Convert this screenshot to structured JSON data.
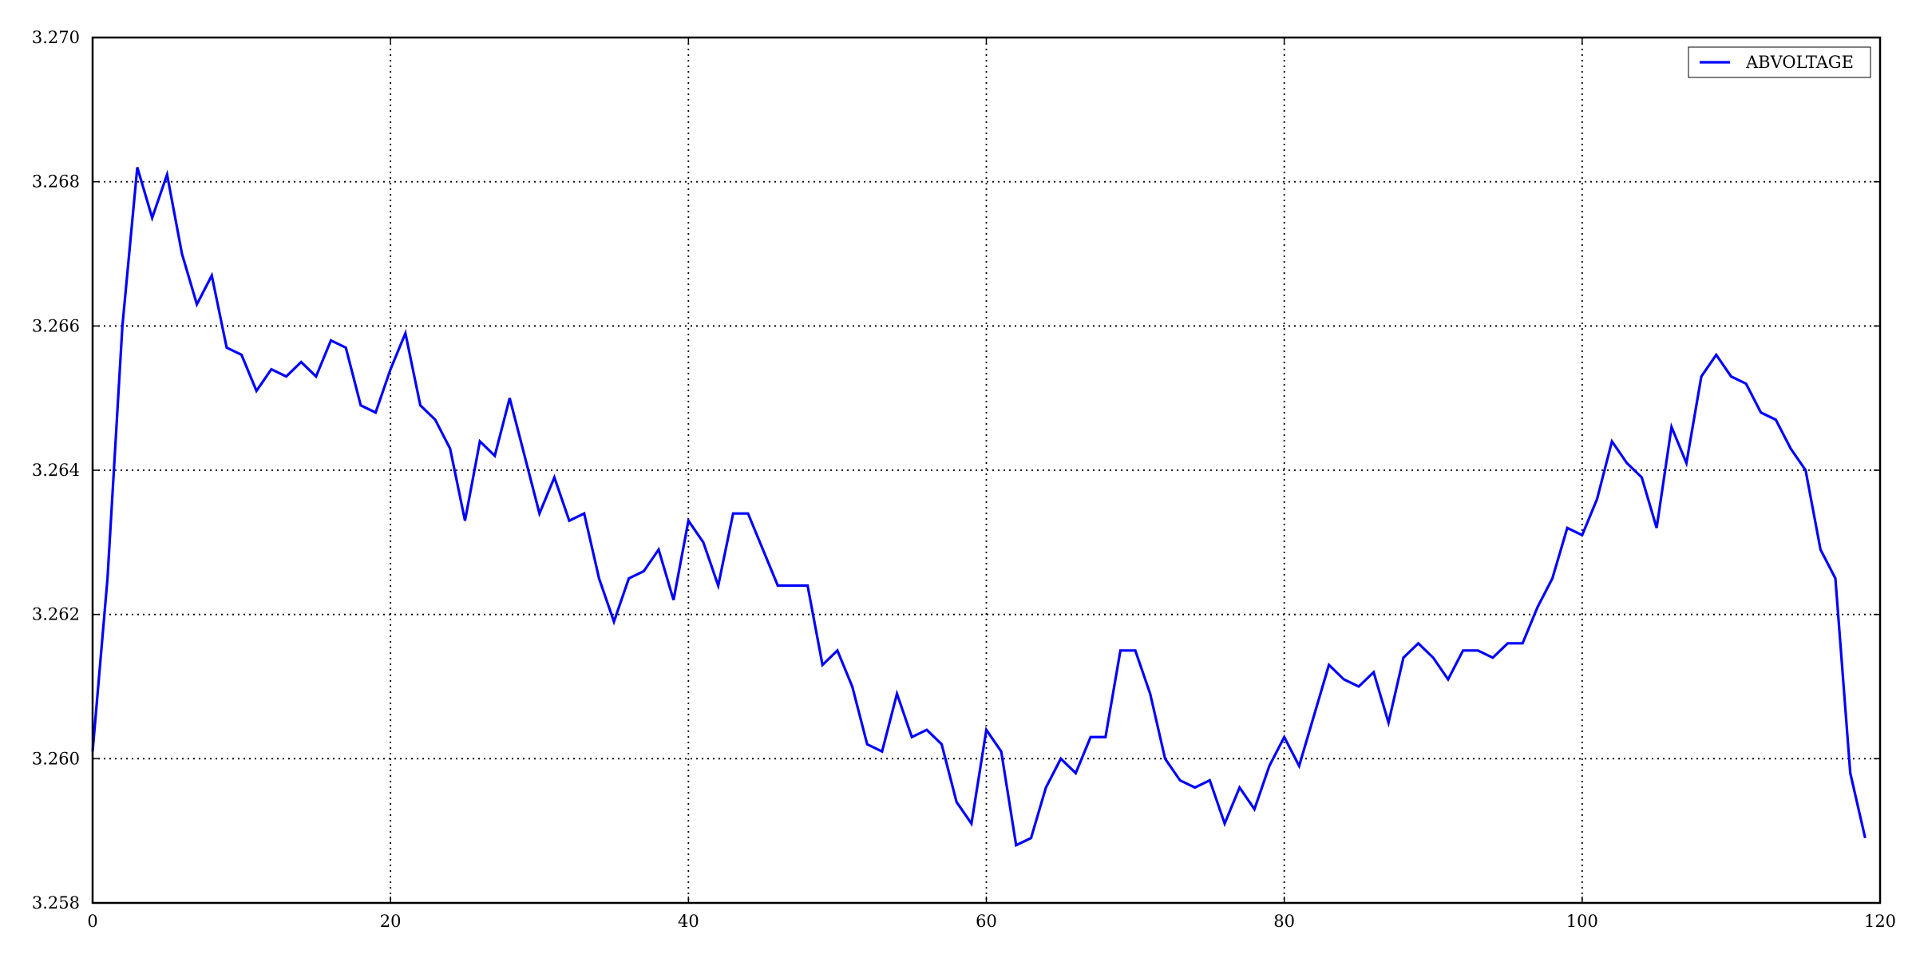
{
  "chart_data": {
    "type": "line",
    "title": "",
    "xlabel": "",
    "ylabel": "",
    "xlim": [
      0,
      120
    ],
    "ylim": [
      3.258,
      3.27
    ],
    "grid": true,
    "grid_style": "dotted",
    "legend_position": "top-right",
    "x_ticks": [
      0,
      20,
      40,
      60,
      80,
      100,
      120
    ],
    "x_tick_labels": [
      "0",
      "20",
      "40",
      "60",
      "80",
      "100",
      "120"
    ],
    "y_ticks": [
      3.258,
      3.26,
      3.262,
      3.264,
      3.266,
      3.268,
      3.27
    ],
    "y_tick_labels": [
      "3.258",
      "3.260",
      "3.262",
      "3.264",
      "3.266",
      "3.268",
      "3.270"
    ],
    "series": [
      {
        "name": "ABVOLTAGE",
        "color": "#0000ff",
        "x": [
          0,
          1,
          2,
          3,
          4,
          5,
          6,
          7,
          8,
          9,
          10,
          11,
          12,
          13,
          14,
          15,
          16,
          17,
          18,
          19,
          20,
          21,
          22,
          23,
          24,
          25,
          26,
          27,
          28,
          29,
          30,
          31,
          32,
          33,
          34,
          35,
          36,
          37,
          38,
          39,
          40,
          41,
          42,
          43,
          44,
          45,
          46,
          47,
          48,
          49,
          50,
          51,
          52,
          53,
          54,
          55,
          56,
          57,
          58,
          59,
          60,
          61,
          62,
          63,
          64,
          65,
          66,
          67,
          68,
          69,
          70,
          71,
          72,
          73,
          74,
          75,
          76,
          77,
          78,
          79,
          80,
          81,
          82,
          83,
          84,
          85,
          86,
          87,
          88,
          89,
          90,
          91,
          92,
          93,
          94,
          95,
          96,
          97,
          98,
          99,
          100,
          101,
          102,
          103,
          104,
          105,
          106,
          107,
          108,
          109,
          110,
          111,
          112,
          113,
          114,
          115,
          116,
          117,
          118,
          119
        ],
        "values": [
          3.2601,
          3.2625,
          3.266,
          3.2682,
          3.2675,
          3.2681,
          3.267,
          3.2663,
          3.2667,
          3.2657,
          3.2656,
          3.2651,
          3.2654,
          3.2653,
          3.2655,
          3.2653,
          3.2658,
          3.2657,
          3.2649,
          3.2648,
          3.2654,
          3.2659,
          3.2649,
          3.2647,
          3.2643,
          3.2633,
          3.2644,
          3.2642,
          3.265,
          3.2642,
          3.2634,
          3.2639,
          3.2633,
          3.2634,
          3.2625,
          3.2619,
          3.2625,
          3.2626,
          3.2629,
          3.2622,
          3.2633,
          3.263,
          3.2624,
          3.2634,
          3.2634,
          3.2629,
          3.2624,
          3.2624,
          3.2624,
          3.2613,
          3.2615,
          3.261,
          3.2602,
          3.2601,
          3.2609,
          3.2603,
          3.2604,
          3.2602,
          3.2594,
          3.2591,
          3.2604,
          3.2601,
          3.2588,
          3.2589,
          3.2596,
          3.26,
          3.2598,
          3.2603,
          3.2603,
          3.2615,
          3.2615,
          3.2609,
          3.26,
          3.2597,
          3.2596,
          3.2597,
          3.2591,
          3.2596,
          3.2593,
          3.2599,
          3.2603,
          3.2599,
          3.2606,
          3.2613,
          3.2611,
          3.261,
          3.2612,
          3.2605,
          3.2614,
          3.2616,
          3.2614,
          3.2611,
          3.2615,
          3.2615,
          3.2614,
          3.2616,
          3.2616,
          3.2621,
          3.2625,
          3.2632,
          3.2631,
          3.2636,
          3.2644,
          3.2641,
          3.2639,
          3.2632,
          3.2646,
          3.2641,
          3.2653,
          3.2656,
          3.2653,
          3.2652,
          3.2648,
          3.2647,
          3.2643,
          3.264,
          3.2629,
          3.2625,
          3.2598,
          3.2589
        ]
      }
    ]
  }
}
